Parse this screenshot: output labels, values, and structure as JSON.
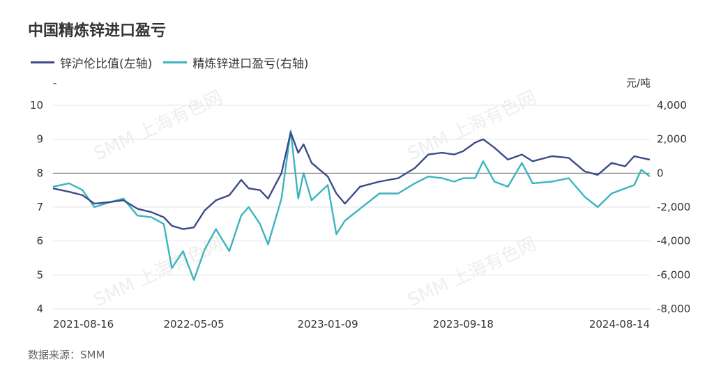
{
  "title": "中国精炼锌进口盈亏",
  "source": "数据来源：SMM",
  "watermark": "SMM 上海有色网",
  "colors": {
    "left_series": "#3d4a8a",
    "right_series": "#3bb4be",
    "grid": "#e3e3ea",
    "zero_line": "#666666"
  },
  "chart_data": {
    "type": "line",
    "title": "中国精炼锌进口盈亏",
    "x_tick_labels": [
      "2021-08-16",
      "2022-05-05",
      "2023-01-09",
      "2023-09-18",
      "2024-08-14"
    ],
    "x_range": [
      "2021-08-16",
      "2024-08-30"
    ],
    "left_axis": {
      "unit": "-",
      "ylim": [
        4,
        10
      ],
      "ticks": [
        "4",
        "5",
        "6",
        "7",
        "8",
        "9",
        "10"
      ]
    },
    "right_axis": {
      "unit": "元/吨",
      "ylim": [
        -8000,
        4000
      ],
      "ticks": [
        "-8,000",
        "-6,000",
        "-4,000",
        "-2,000",
        "0",
        "2,000",
        "4,000"
      ]
    },
    "grid": true,
    "legend_position": "top-left",
    "series": [
      {
        "name": "锌沪伦比值(左轴)",
        "axis": "left",
        "points": [
          [
            "2021-08-16",
            7.55
          ],
          [
            "2021-09-15",
            7.45
          ],
          [
            "2021-10-10",
            7.35
          ],
          [
            "2021-11-01",
            7.1
          ],
          [
            "2021-12-01",
            7.15
          ],
          [
            "2021-12-25",
            7.2
          ],
          [
            "2022-01-20",
            6.95
          ],
          [
            "2022-02-15",
            6.85
          ],
          [
            "2022-03-10",
            6.7
          ],
          [
            "2022-03-25",
            6.45
          ],
          [
            "2022-04-15",
            6.35
          ],
          [
            "2022-05-05",
            6.4
          ],
          [
            "2022-05-25",
            6.9
          ],
          [
            "2022-06-15",
            7.2
          ],
          [
            "2022-07-10",
            7.35
          ],
          [
            "2022-08-01",
            7.8
          ],
          [
            "2022-08-15",
            7.55
          ],
          [
            "2022-09-05",
            7.5
          ],
          [
            "2022-09-20",
            7.25
          ],
          [
            "2022-10-15",
            8.0
          ],
          [
            "2022-11-01",
            9.2
          ],
          [
            "2022-11-15",
            8.6
          ],
          [
            "2022-11-25",
            8.85
          ],
          [
            "2022-12-10",
            8.3
          ],
          [
            "2023-01-09",
            7.9
          ],
          [
            "2023-01-25",
            7.4
          ],
          [
            "2023-02-10",
            7.1
          ],
          [
            "2023-03-10",
            7.6
          ],
          [
            "2023-04-15",
            7.75
          ],
          [
            "2023-05-20",
            7.85
          ],
          [
            "2023-06-20",
            8.15
          ],
          [
            "2023-07-15",
            8.55
          ],
          [
            "2023-08-10",
            8.6
          ],
          [
            "2023-09-01",
            8.55
          ],
          [
            "2023-09-18",
            8.65
          ],
          [
            "2023-10-10",
            8.9
          ],
          [
            "2023-10-25",
            9.0
          ],
          [
            "2023-11-15",
            8.75
          ],
          [
            "2023-12-10",
            8.4
          ],
          [
            "2024-01-05",
            8.55
          ],
          [
            "2024-01-25",
            8.35
          ],
          [
            "2024-03-01",
            8.5
          ],
          [
            "2024-04-01",
            8.45
          ],
          [
            "2024-05-01",
            8.05
          ],
          [
            "2024-05-25",
            7.95
          ],
          [
            "2024-06-20",
            8.3
          ],
          [
            "2024-07-15",
            8.2
          ],
          [
            "2024-08-01",
            8.5
          ],
          [
            "2024-08-14",
            8.45
          ],
          [
            "2024-08-30",
            8.4
          ]
        ]
      },
      {
        "name": "精炼锌进口盈亏(右轴)",
        "axis": "right",
        "points": [
          [
            "2021-08-16",
            -800
          ],
          [
            "2021-09-15",
            -600
          ],
          [
            "2021-10-10",
            -1000
          ],
          [
            "2021-11-01",
            -2000
          ],
          [
            "2021-12-01",
            -1700
          ],
          [
            "2021-12-25",
            -1500
          ],
          [
            "2022-01-20",
            -2500
          ],
          [
            "2022-02-15",
            -2600
          ],
          [
            "2022-03-10",
            -3000
          ],
          [
            "2022-03-25",
            -5600
          ],
          [
            "2022-04-15",
            -4600
          ],
          [
            "2022-05-05",
            -6300
          ],
          [
            "2022-05-25",
            -4500
          ],
          [
            "2022-06-15",
            -3300
          ],
          [
            "2022-07-10",
            -4600
          ],
          [
            "2022-08-01",
            -2500
          ],
          [
            "2022-08-15",
            -2000
          ],
          [
            "2022-09-05",
            -3000
          ],
          [
            "2022-09-20",
            -4200
          ],
          [
            "2022-10-15",
            -1500
          ],
          [
            "2022-11-01",
            2500
          ],
          [
            "2022-11-15",
            -1500
          ],
          [
            "2022-11-25",
            0
          ],
          [
            "2022-12-10",
            -1600
          ],
          [
            "2023-01-09",
            -700
          ],
          [
            "2023-01-25",
            -3600
          ],
          [
            "2023-02-10",
            -2800
          ],
          [
            "2023-03-10",
            -2100
          ],
          [
            "2023-04-15",
            -1200
          ],
          [
            "2023-05-20",
            -1200
          ],
          [
            "2023-06-20",
            -600
          ],
          [
            "2023-07-15",
            -200
          ],
          [
            "2023-08-10",
            -300
          ],
          [
            "2023-09-01",
            -500
          ],
          [
            "2023-09-18",
            -300
          ],
          [
            "2023-10-10",
            -300
          ],
          [
            "2023-10-25",
            700
          ],
          [
            "2023-11-15",
            -500
          ],
          [
            "2023-12-10",
            -800
          ],
          [
            "2024-01-05",
            600
          ],
          [
            "2024-01-25",
            -600
          ],
          [
            "2024-03-01",
            -500
          ],
          [
            "2024-04-01",
            -300
          ],
          [
            "2024-05-01",
            -1400
          ],
          [
            "2024-05-25",
            -2000
          ],
          [
            "2024-06-20",
            -1200
          ],
          [
            "2024-07-15",
            -900
          ],
          [
            "2024-08-01",
            -700
          ],
          [
            "2024-08-14",
            200
          ],
          [
            "2024-08-30",
            -200
          ]
        ]
      }
    ]
  }
}
